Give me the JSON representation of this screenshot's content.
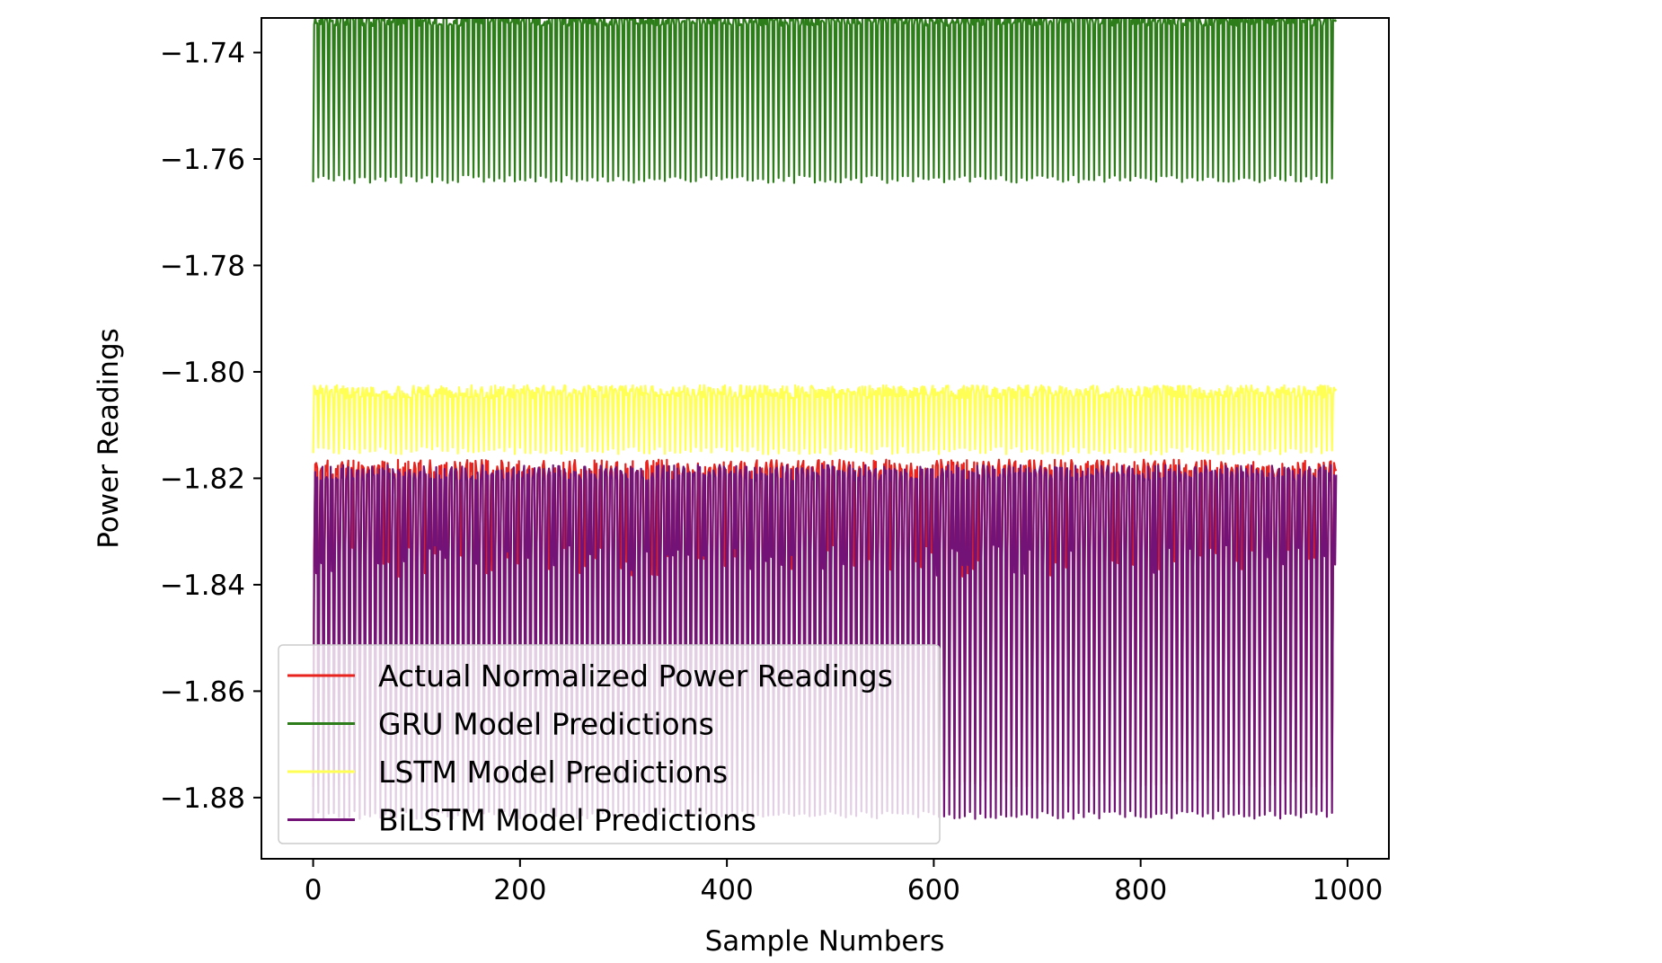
{
  "chart_data": {
    "type": "line",
    "title": "",
    "xlabel": "Sample Numbers",
    "ylabel": "Power Readings",
    "xlim": [
      -50,
      1040
    ],
    "ylim": [
      -1.8915,
      -1.7335
    ],
    "xticks": [
      0,
      200,
      400,
      600,
      800,
      1000
    ],
    "xtick_labels": [
      "0",
      "200",
      "400",
      "600",
      "800",
      "1000"
    ],
    "yticks": [
      -1.88,
      -1.86,
      -1.84,
      -1.82,
      -1.8,
      -1.78,
      -1.76,
      -1.74
    ],
    "ytick_labels": [
      "−1.88",
      "−1.86",
      "−1.84",
      "−1.82",
      "−1.80",
      "−1.78",
      "−1.76",
      "−1.74"
    ],
    "grid": false,
    "legend_position": "lower-left",
    "n_samples": 990,
    "series": [
      {
        "name": "Actual Normalized Power Readings",
        "color": "#e8221c",
        "high": -1.8165,
        "mid": -1.8355,
        "low": -1.878,
        "period": 5
      },
      {
        "name": "GRU Model Predictions",
        "color": "#2d7e1a",
        "high": -1.7325,
        "low": -1.7645,
        "period": 5
      },
      {
        "name": "LSTM Model Predictions",
        "color": "#ffff55",
        "high": -1.8025,
        "low": -1.8155,
        "period": 5
      },
      {
        "name": "BiLSTM Model Predictions",
        "color": "#731277",
        "high": -1.8175,
        "mid": -1.8355,
        "low": -1.884,
        "period": 5
      }
    ]
  }
}
